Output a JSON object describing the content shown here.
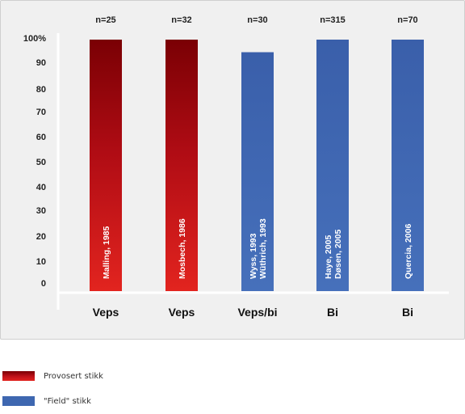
{
  "chart_data": {
    "type": "bar",
    "categories": [
      "Veps",
      "Veps",
      "Veps/bi",
      "Bi",
      "Bi"
    ],
    "values": [
      100,
      100,
      95,
      100,
      100
    ],
    "counts": [
      "n=25",
      "n=32",
      "n=30",
      "n=315",
      "n=70"
    ],
    "bar_labels": [
      [
        "Malling, 1985"
      ],
      [
        "Mosbech, 1986"
      ],
      [
        "Wyss, 1993",
        "Wüthrich, 1993"
      ],
      [
        "Haye, 2005",
        "Døsen, 2005"
      ],
      [
        "Quercia, 2006"
      ]
    ],
    "groups": [
      "Provosert stikk",
      "Provosert stikk",
      "\"Field\" stikk",
      "\"Field\" stikk",
      "\"Field\" stikk"
    ],
    "y_ticks": [
      "0",
      "10",
      "20",
      "30",
      "40",
      "50",
      "60",
      "70",
      "80",
      "90",
      "100%"
    ],
    "ylim": [
      0,
      100
    ],
    "grid": false,
    "legend_position": "bottom-left",
    "legend": [
      {
        "name": "Provosert stikk",
        "color": "#c0121a"
      },
      {
        "name": "\"Field\" stikk",
        "color": "#3e67b0"
      }
    ]
  }
}
